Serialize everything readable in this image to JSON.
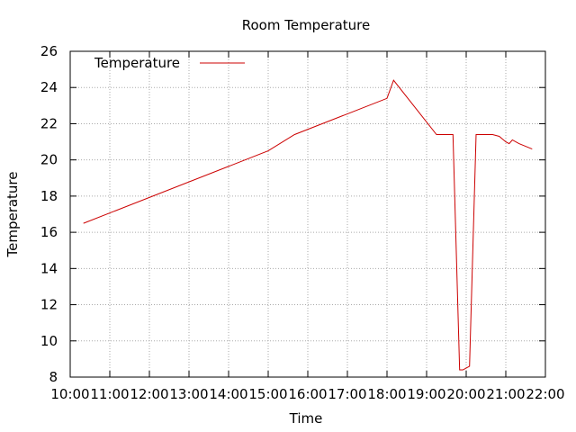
{
  "chart_data": {
    "type": "line",
    "title": "Room Temperature",
    "xlabel": "Time",
    "ylabel": "Temperature",
    "xlim": [
      "10:00",
      "22:00"
    ],
    "ylim": [
      8,
      26
    ],
    "x_ticks": [
      "10:00",
      "11:00",
      "12:00",
      "13:00",
      "14:00",
      "15:00",
      "16:00",
      "17:00",
      "18:00",
      "19:00",
      "20:00",
      "21:00",
      "22:00"
    ],
    "y_ticks": [
      8,
      10,
      12,
      14,
      16,
      18,
      20,
      22,
      24,
      26
    ],
    "grid": true,
    "legend_position": "top-left",
    "series_color": "#cc0000",
    "series": [
      {
        "name": "Temperature",
        "x": [
          "10:20",
          "15:00",
          "15:40",
          "18:00",
          "18:10",
          "19:15",
          "19:40",
          "19:50",
          "19:55",
          "20:05",
          "20:15",
          "20:40",
          "20:50",
          "21:00",
          "21:05",
          "21:10",
          "21:20",
          "21:40"
        ],
        "y": [
          16.5,
          20.5,
          21.4,
          23.4,
          24.4,
          21.4,
          21.4,
          8.4,
          8.4,
          8.6,
          21.4,
          21.4,
          21.3,
          21.0,
          20.9,
          21.1,
          20.9,
          20.6
        ]
      }
    ]
  }
}
